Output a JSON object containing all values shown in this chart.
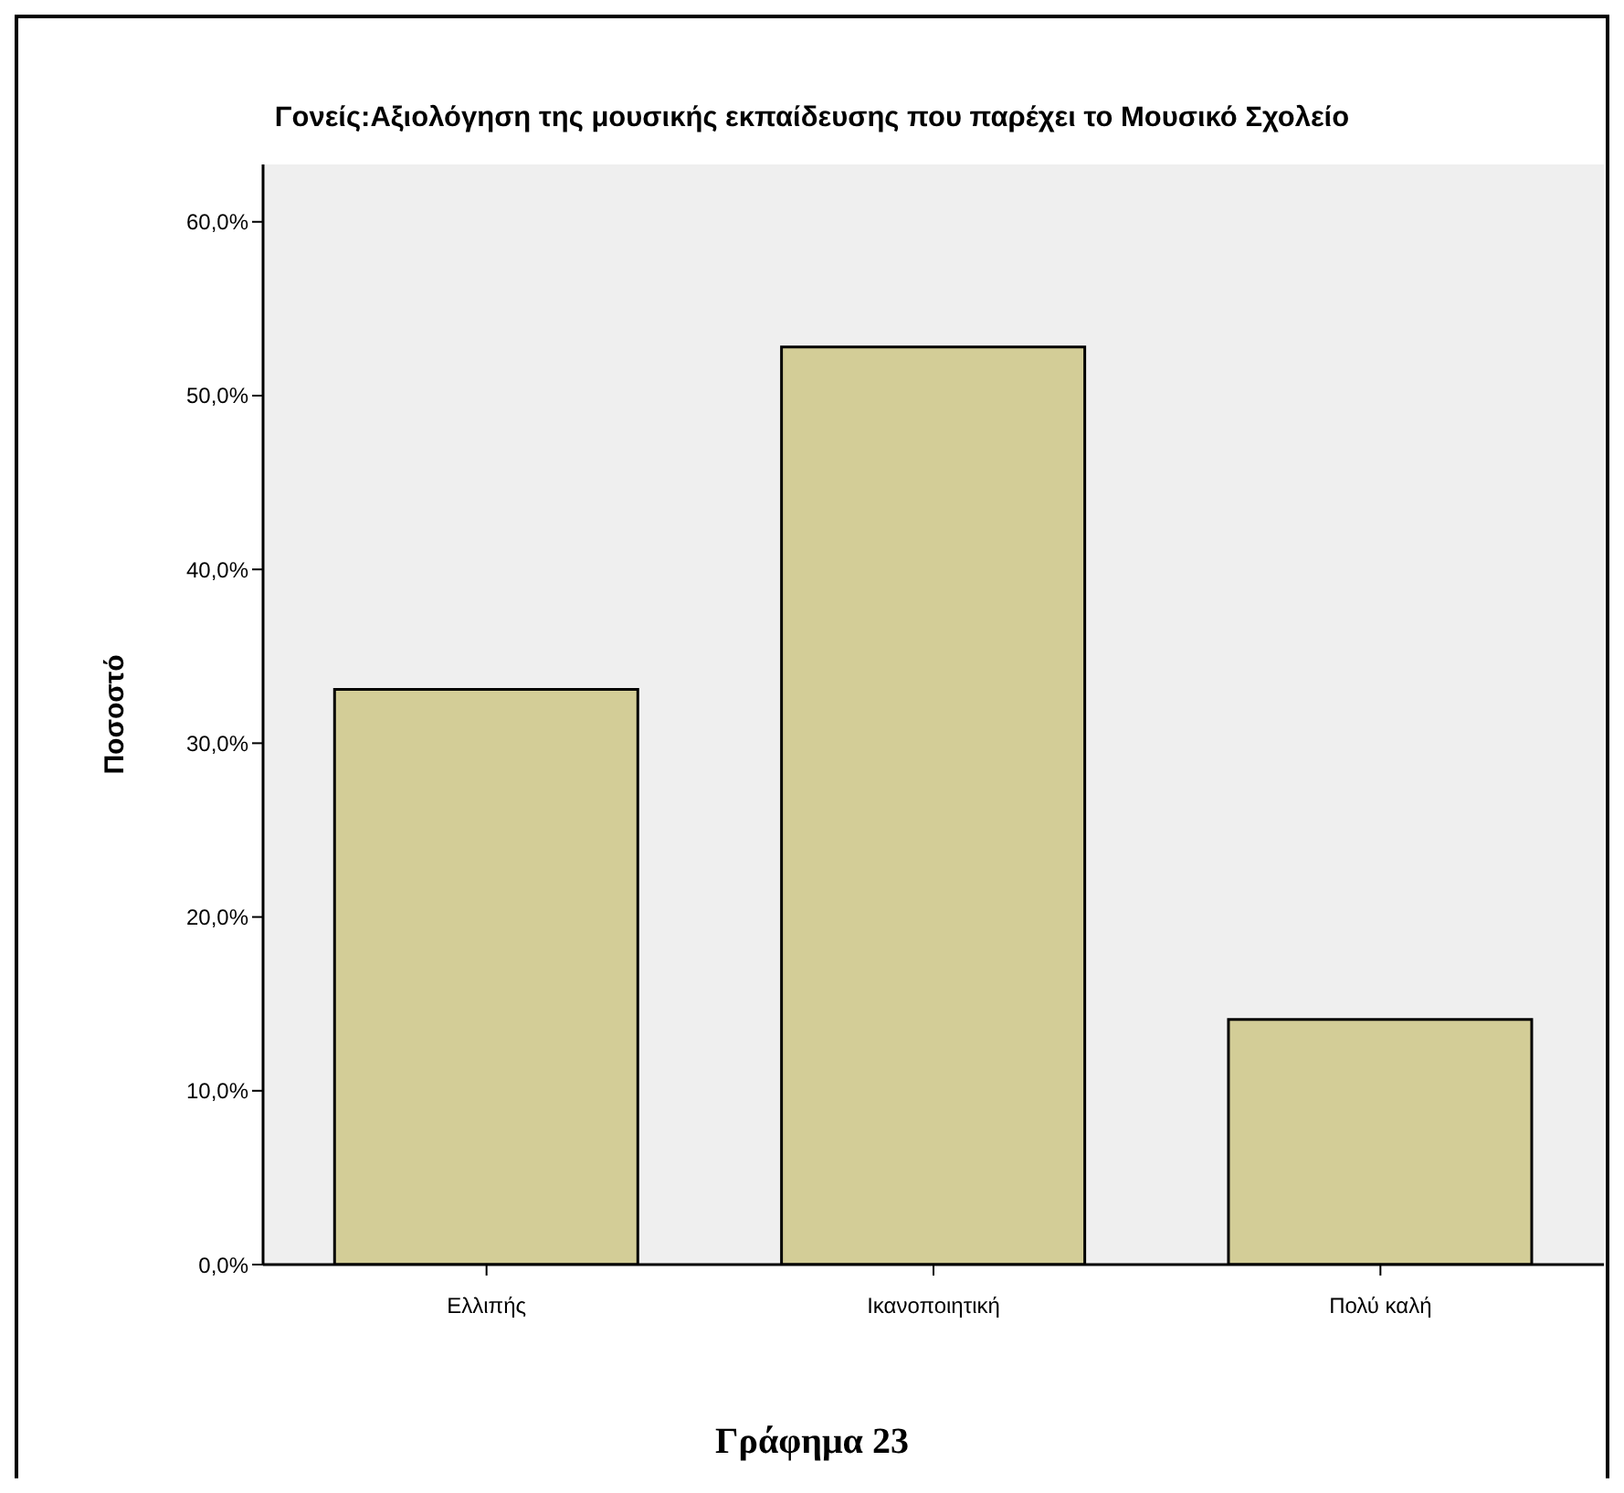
{
  "chart_data": {
    "type": "bar",
    "title": "Γονείς:Αξιολόγηση της μουσικής εκπαίδευσης που παρέχει το Μουσικό Σχολείο",
    "ylabel": "Ποσοστό",
    "categories": [
      "Ελλιπής",
      "Ικανοποιητική",
      "Πολύ καλή"
    ],
    "values": [
      33.1,
      52.8,
      14.1
    ],
    "color": "#d3cd97",
    "ylim": [
      0,
      63.3
    ],
    "yticks": [
      {
        "value": 0,
        "label": "0,0%"
      },
      {
        "value": 10,
        "label": "10,0%"
      },
      {
        "value": 20,
        "label": "20,0%"
      },
      {
        "value": 30,
        "label": "30,0%"
      },
      {
        "value": 40,
        "label": "40,0%"
      },
      {
        "value": 50,
        "label": "50,0%"
      },
      {
        "value": 60,
        "label": "60,0%"
      }
    ],
    "grid": false,
    "annotations": [
      "Γράφημα 23"
    ]
  }
}
